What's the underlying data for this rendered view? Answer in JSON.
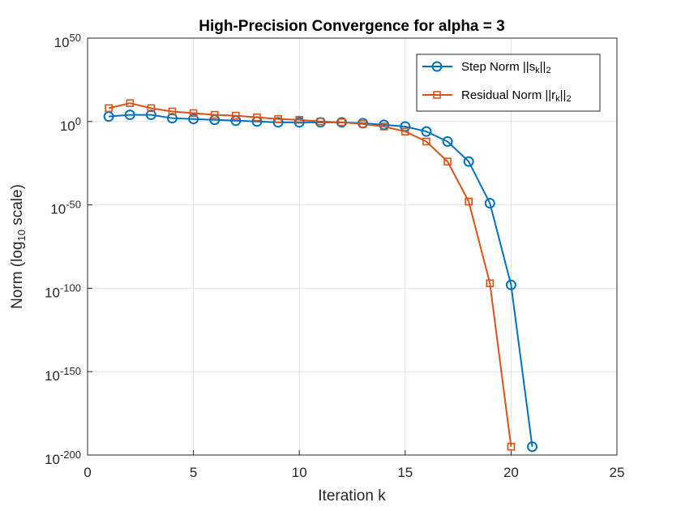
{
  "chart_data": {
    "type": "line",
    "title": "High-Precision Convergence for alpha = 3",
    "xlabel": "Iteration k",
    "ylabel": {
      "base": "Norm (log",
      "sub": "10",
      "tail": " scale)"
    },
    "xlim": [
      0,
      25
    ],
    "ylim_exp": [
      -200,
      50
    ],
    "yscale": "log",
    "grid": true,
    "legend_location": "top-right",
    "x_ticks": [
      0,
      5,
      10,
      15,
      20,
      25
    ],
    "y_ticks": [
      {
        "exp": 50,
        "base": "10",
        "sup": "50"
      },
      {
        "exp": 0,
        "base": "10",
        "sup": "0"
      },
      {
        "exp": -50,
        "base": "10",
        "sup": "-50"
      },
      {
        "exp": -100,
        "base": "10",
        "sup": "-100"
      },
      {
        "exp": -150,
        "base": "10",
        "sup": "-150"
      },
      {
        "exp": -200,
        "base": "10",
        "sup": "-200"
      }
    ],
    "series": [
      {
        "name": "Step Norm ||s_k||_2",
        "legend": {
          "pre": "Step Norm ||s",
          "sub": "k",
          "mid": "||",
          "sub2": "2"
        },
        "color": "#0072BD",
        "marker": "circle",
        "x": [
          1,
          2,
          3,
          4,
          5,
          6,
          7,
          8,
          9,
          10,
          11,
          12,
          13,
          14,
          15,
          16,
          17,
          18,
          19,
          20,
          21
        ],
        "log10_y": [
          3,
          4,
          4,
          2,
          1.5,
          1,
          0.5,
          0,
          -0.5,
          -0.5,
          -0.5,
          -0.5,
          -1,
          -2,
          -3,
          -6,
          -12,
          -24,
          -49,
          -98,
          -195
        ]
      },
      {
        "name": "Residual Norm ||r_k||_2",
        "legend": {
          "pre": "Residual Norm ||r",
          "sub": "k",
          "mid": "||",
          "sub2": "2"
        },
        "color": "#D95319",
        "marker": "square",
        "x": [
          1,
          2,
          3,
          4,
          5,
          6,
          7,
          8,
          9,
          10,
          11,
          12,
          13,
          14,
          15,
          16,
          17,
          18,
          19,
          20
        ],
        "log10_y": [
          8,
          11,
          8,
          6,
          5,
          4,
          3.5,
          2.5,
          1.5,
          1,
          0,
          -0.5,
          -1.5,
          -3,
          -6,
          -12,
          -24,
          -48,
          -97,
          -195
        ]
      }
    ]
  }
}
